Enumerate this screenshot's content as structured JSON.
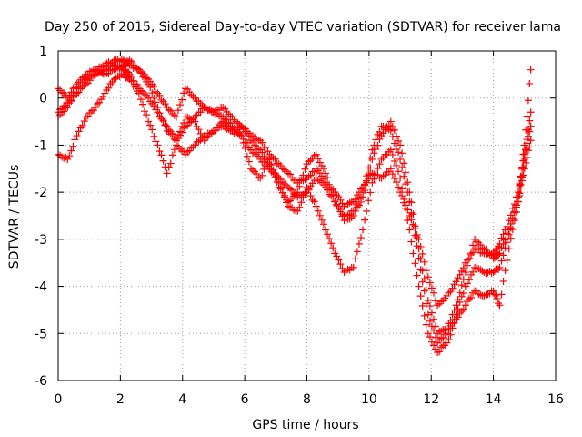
{
  "chart_data": {
    "type": "scatter",
    "title": "Day 250 of 2015, Sidereal Day-to-day VTEC variation (SDTVAR) for receiver lama",
    "xlabel": "GPS time / hours",
    "ylabel": "SDTVAR / TECUs",
    "xlim": [
      0,
      16
    ],
    "ylim": [
      -6,
      1
    ],
    "xticks": [
      0,
      2,
      4,
      6,
      8,
      10,
      12,
      14,
      16
    ],
    "yticks": [
      1,
      0,
      -1,
      -2,
      -3,
      -4,
      -5,
      -6
    ],
    "grid": true,
    "legend": "none",
    "marker": "plus",
    "color": "#ff0000",
    "series": [
      {
        "x": [
          0.0,
          0.3,
          0.6,
          0.9,
          1.2,
          1.5,
          1.8,
          2.1,
          2.3,
          2.6,
          2.9,
          3.2,
          3.5,
          3.8,
          4.1,
          4.4,
          4.7,
          5.0,
          5.3,
          5.6,
          5.9,
          6.2,
          6.5,
          6.8,
          7.1,
          7.4,
          7.7,
          8.0,
          8.3,
          8.6,
          8.9,
          9.2,
          9.5,
          9.8,
          10.1,
          10.4,
          10.7,
          11.0,
          11.3,
          11.6,
          11.9,
          12.2,
          12.5,
          12.8,
          13.1,
          13.4,
          13.7,
          14.0,
          14.2,
          14.5,
          14.8,
          15.0,
          15.2
        ],
        "y": [
          0.2,
          0.0,
          0.3,
          0.5,
          0.6,
          0.7,
          0.8,
          0.8,
          0.7,
          0.6,
          0.4,
          0.1,
          -0.2,
          -0.4,
          0.2,
          0.0,
          -0.2,
          -0.3,
          -0.2,
          -0.4,
          -0.6,
          -0.8,
          -0.9,
          -1.2,
          -1.4,
          -1.6,
          -1.8,
          -1.7,
          -1.5,
          -1.8,
          -2.0,
          -2.3,
          -2.2,
          -1.9,
          -1.6,
          -1.7,
          -1.5,
          -2.0,
          -2.5,
          -3.0,
          -3.8,
          -4.4,
          -4.2,
          -3.9,
          -3.5,
          -3.2,
          -3.3,
          -3.3,
          -3.1,
          -2.6,
          -2.0,
          -1.2,
          -0.6
        ]
      },
      {
        "x": [
          0.0,
          0.3,
          0.6,
          0.9,
          1.2,
          1.5,
          1.8,
          2.1,
          2.3,
          2.6,
          2.9,
          3.2,
          3.5,
          3.8,
          4.1,
          4.4,
          4.7,
          5.0,
          5.3,
          5.6,
          5.9,
          6.2,
          6.5,
          6.8,
          7.1,
          7.4,
          7.7,
          8.0,
          8.3,
          8.6,
          8.9,
          9.2,
          9.5,
          9.8,
          10.1,
          10.4,
          10.7,
          11.0,
          11.3,
          11.6,
          11.9,
          12.2,
          12.5,
          12.8,
          13.1,
          13.4,
          13.7,
          14.0,
          14.2,
          14.5,
          14.8,
          15.0,
          15.2
        ],
        "y": [
          -0.3,
          -0.1,
          0.1,
          0.3,
          0.5,
          0.6,
          0.7,
          0.6,
          0.5,
          0.2,
          0.0,
          -0.3,
          -0.6,
          -0.9,
          -0.4,
          -0.5,
          -0.9,
          -0.7,
          -0.5,
          -0.7,
          -0.6,
          -0.9,
          -1.1,
          -1.4,
          -1.9,
          -2.2,
          -2.0,
          -1.4,
          -1.2,
          -1.6,
          -2.2,
          -2.6,
          -2.5,
          -2.1,
          -1.3,
          -0.8,
          -0.5,
          -1.0,
          -2.0,
          -3.2,
          -4.3,
          -5.0,
          -4.9,
          -4.4,
          -3.7,
          -3.0,
          -3.2,
          -3.4,
          -3.3,
          -2.8,
          -2.2,
          -1.5,
          -0.9
        ]
      },
      {
        "x": [
          0.0,
          0.3,
          0.6,
          0.9,
          1.2,
          1.5,
          1.8,
          2.1,
          2.3,
          2.6,
          2.9,
          3.2,
          3.5,
          3.8,
          4.1,
          4.4,
          4.7,
          5.0,
          5.3,
          5.6,
          5.9,
          6.2,
          6.5,
          6.8,
          7.1,
          7.4,
          7.7,
          8.0,
          8.3,
          8.6,
          8.9,
          9.2,
          9.5,
          9.8,
          10.1,
          10.4,
          10.7,
          11.0,
          11.3,
          11.6,
          11.9,
          12.2,
          12.5,
          12.8,
          13.1,
          13.4,
          13.7,
          14.0,
          14.2,
          14.5,
          14.8,
          15.0,
          15.2
        ],
        "y": [
          -1.2,
          -1.3,
          -0.8,
          -0.4,
          -0.2,
          0.1,
          0.4,
          0.5,
          0.4,
          0.1,
          -0.5,
          -1.0,
          -1.6,
          -1.0,
          -1.2,
          -1.0,
          -0.8,
          -0.7,
          -0.6,
          -0.7,
          -0.8,
          -1.5,
          -1.7,
          -1.3,
          -1.8,
          -2.3,
          -2.4,
          -1.9,
          -2.3,
          -2.8,
          -3.3,
          -3.7,
          -3.6,
          -2.8,
          -1.8,
          -1.3,
          -1.1,
          -1.7,
          -2.8,
          -4.0,
          -5.0,
          -5.4,
          -5.2,
          -4.7,
          -4.4,
          -4.1,
          -4.2,
          -4.1,
          -4.4,
          -3.2,
          -2.2,
          -1.3,
          -0.3
        ]
      },
      {
        "x": [
          0.0,
          0.3,
          0.6,
          0.9,
          1.2,
          1.5,
          1.8,
          2.1,
          2.3,
          2.6,
          2.9,
          3.2,
          3.5,
          3.8,
          4.1,
          4.4,
          4.7,
          5.0,
          5.3,
          5.6,
          5.9,
          6.2,
          6.5,
          6.8,
          7.1,
          7.4,
          7.7,
          8.0,
          8.3,
          8.6,
          8.9,
          9.2,
          9.5,
          9.8,
          10.1,
          10.4,
          10.7,
          11.0,
          11.3,
          11.6,
          11.9,
          12.2,
          12.5,
          12.8,
          13.1,
          13.4,
          13.7,
          14.0,
          14.2,
          14.5,
          14.8,
          15.0,
          15.2
        ],
        "y": [
          -0.4,
          -0.2,
          0.2,
          0.4,
          0.6,
          0.5,
          0.6,
          0.7,
          0.8,
          0.6,
          0.3,
          -0.2,
          -0.7,
          -0.9,
          -0.6,
          -0.4,
          -0.2,
          -0.3,
          -0.4,
          -0.6,
          -0.8,
          -1.1,
          -1.3,
          -1.5,
          -1.7,
          -1.9,
          -2.1,
          -2.0,
          -1.7,
          -1.9,
          -2.2,
          -2.5,
          -2.4,
          -2.0,
          -1.1,
          -0.6,
          -0.7,
          -1.3,
          -2.2,
          -3.4,
          -4.6,
          -5.2,
          -5.0,
          -4.6,
          -4.0,
          -3.6,
          -3.7,
          -3.7,
          -3.6,
          -2.9,
          -2.1,
          -1.0,
          0.6
        ]
      }
    ]
  }
}
